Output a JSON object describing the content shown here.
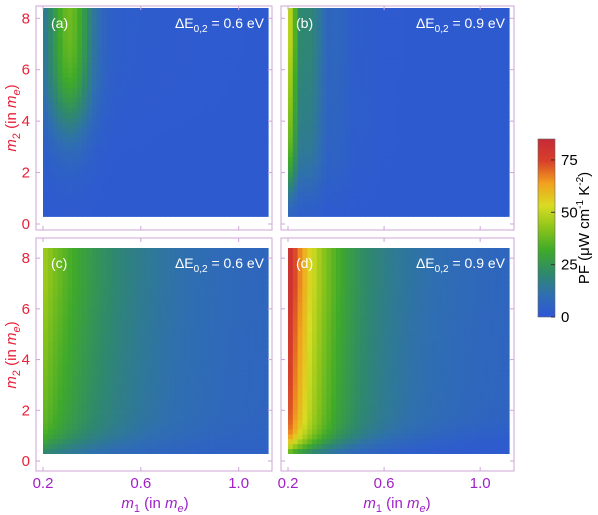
{
  "chart_data": {
    "type": "heatmap",
    "panels": [
      {
        "label": "(a)",
        "annotation": "ΔE",
        "annotation_sub": "0,2",
        "annotation_value": " = 0.6 eV",
        "peak": 40
      },
      {
        "label": "(b)",
        "annotation": "ΔE",
        "annotation_sub": "0,2",
        "annotation_value": " = 0.9 eV",
        "peak": 55
      },
      {
        "label": "(c)",
        "annotation": "ΔE",
        "annotation_sub": "0,2",
        "annotation_value": " = 0.6 eV",
        "peak": 45
      },
      {
        "label": "(d)",
        "annotation": "ΔE",
        "annotation_sub": "0,2",
        "annotation_value": " = 0.9 eV",
        "peak": 85
      }
    ],
    "x": {
      "label_var": "m",
      "label_sub": "1",
      "label_unit_pre": " (in ",
      "label_unit_var": "m",
      "label_unit_sub": "e",
      "label_unit_post": ")",
      "range": [
        0.2,
        1.12
      ],
      "ticks": [
        0.2,
        0.6,
        1.0
      ],
      "tick_labels": [
        "0.2",
        "0.6",
        "1.0"
      ],
      "color": "#a020c8"
    },
    "y": {
      "label_var": "m",
      "label_sub": "2",
      "label_unit_pre": " (in ",
      "label_unit_var": "m",
      "label_unit_sub": "e",
      "label_unit_post": ")",
      "range": [
        0,
        8.4
      ],
      "ticks": [
        0,
        2,
        4,
        6,
        8
      ],
      "tick_labels": [
        "0",
        "2",
        "4",
        "6",
        "8"
      ],
      "color": "#e8203a"
    },
    "colorbar": {
      "title": "PF (μW cm",
      "title_sup1": "-1",
      "title_mid": " K",
      "title_sup2": "-2",
      "title_end": ")",
      "range": [
        0,
        85
      ],
      "ticks": [
        0,
        25,
        50,
        75
      ],
      "tick_labels": [
        "0",
        "25",
        "50",
        "75"
      ],
      "colors": [
        "#2e55d8",
        "#2f6fb0",
        "#2f8a6a",
        "#3faa2a",
        "#8cc41a",
        "#d8dc22",
        "#f2a11e",
        "#d8402a",
        "#c52a36"
      ]
    }
  }
}
